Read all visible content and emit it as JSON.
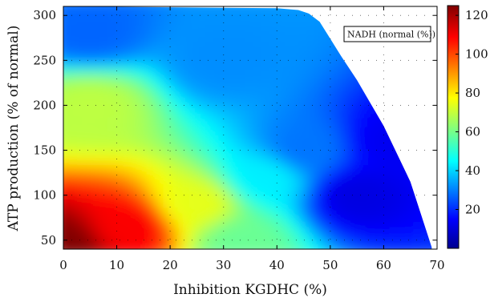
{
  "chart_data": {
    "type": "heatmap",
    "xlabel": "Inhibition KGDHC (%)",
    "ylabel": "ATP production (% of normal)",
    "x_ticks": [
      0,
      10,
      20,
      30,
      40,
      50,
      60,
      70
    ],
    "y_ticks": [
      50,
      100,
      150,
      200,
      250,
      300
    ],
    "xlim": [
      0,
      70
    ],
    "ylim": [
      40,
      310
    ],
    "legend": "NADH (normal (%))",
    "legend_position": "top-right",
    "colorbar": {
      "range": [
        0,
        125
      ],
      "ticks": [
        20,
        40,
        60,
        80,
        100,
        120
      ],
      "colormap": "jet"
    },
    "grid": "dotted",
    "boundary": [
      {
        "x": 0,
        "y": 310
      },
      {
        "x": 40,
        "y": 308
      },
      {
        "x": 44,
        "y": 306
      },
      {
        "x": 46,
        "y": 302
      },
      {
        "x": 48,
        "y": 293
      },
      {
        "x": 50,
        "y": 274
      },
      {
        "x": 52,
        "y": 255
      },
      {
        "x": 55,
        "y": 228
      },
      {
        "x": 60,
        "y": 177
      },
      {
        "x": 65,
        "y": 115
      },
      {
        "x": 69,
        "y": 42
      }
    ],
    "value_samples": [
      {
        "x": 0,
        "y": 45,
        "value": 125
      },
      {
        "x": 12,
        "y": 65,
        "value": 110
      },
      {
        "x": 25,
        "y": 90,
        "value": 75
      },
      {
        "x": 33,
        "y": 50,
        "value": 60
      },
      {
        "x": 38,
        "y": 120,
        "value": 45
      },
      {
        "x": 45,
        "y": 150,
        "value": 30
      },
      {
        "x": 5,
        "y": 200,
        "value": 70
      },
      {
        "x": 5,
        "y": 280,
        "value": 28
      },
      {
        "x": 30,
        "y": 250,
        "value": 33
      },
      {
        "x": 55,
        "y": 100,
        "value": 12
      },
      {
        "x": 62,
        "y": 160,
        "value": 14
      }
    ]
  }
}
